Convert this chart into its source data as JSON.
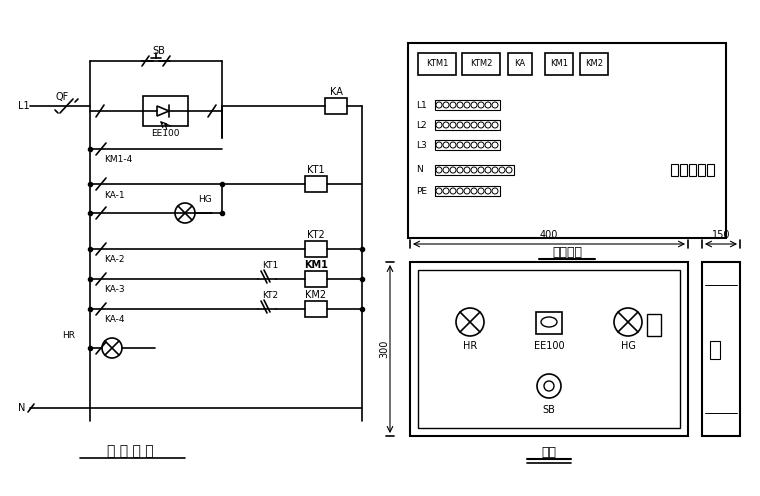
{
  "bg_color": "#ffffff",
  "line_color": "#000000",
  "title_left": "控 制 回 路",
  "title_right_top": "元件布置",
  "title_right_bottom": "正家",
  "fig_width": 7.6,
  "fig_height": 4.96,
  "dpi": 100
}
